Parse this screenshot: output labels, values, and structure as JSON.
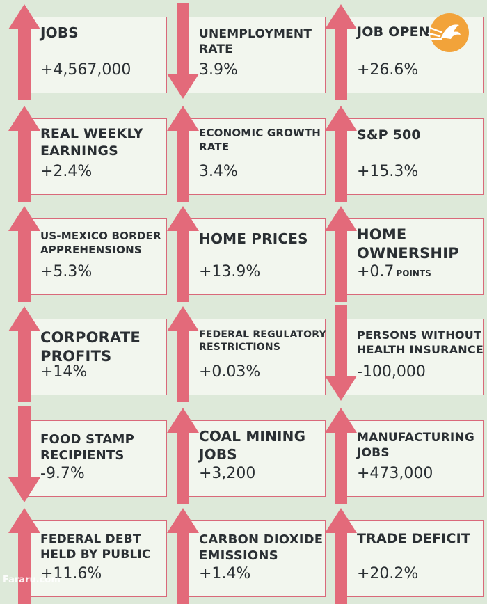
{
  "colors": {
    "background": "#dde9d9",
    "card": "#f2f6ee",
    "border": "#d9697a",
    "arrow": "#e36a7a",
    "text": "#2a2f33"
  },
  "watermark": "Fararu.com",
  "logo": {
    "icon": "fararu-logo-icon"
  },
  "indicators": [
    {
      "label": "JOBS",
      "value": "+4,567,000",
      "direction": "up"
    },
    {
      "label": "UNEMPLOYMENT\nRATE",
      "value": "3.9%",
      "direction": "down"
    },
    {
      "label": "JOB OPENINGS",
      "value": "+26.6%",
      "direction": "up"
    },
    {
      "label": "REAL WEEKLY\nEARNINGS",
      "value": "+2.4%",
      "direction": "up"
    },
    {
      "label": "ECONOMIC GROWTH\nRATE",
      "value": "3.4%",
      "direction": "up"
    },
    {
      "label": "S&P 500",
      "value": "+15.3%",
      "direction": "up"
    },
    {
      "label": "US-MEXICO BORDER\nAPPREHENSIONS",
      "value": "+5.3%",
      "direction": "up"
    },
    {
      "label": "HOME PRICES",
      "value": "+13.9%",
      "direction": "up"
    },
    {
      "label": "HOME\nOWNERSHIP",
      "value": "+0.7",
      "unit": "POINTS",
      "direction": "up"
    },
    {
      "label": "CORPORATE\nPROFITS",
      "value": "+14%",
      "direction": "up"
    },
    {
      "label": "FEDERAL REGULATORY\nRESTRICTIONS",
      "value": "+0.03%",
      "direction": "up"
    },
    {
      "label": "PERSONS WITHOUT\nHEALTH INSURANCE",
      "value": "-100,000",
      "direction": "down"
    },
    {
      "label": "FOOD STAMP\nRECIPIENTS",
      "value": "-9.7%",
      "direction": "down"
    },
    {
      "label": "COAL MINING\nJOBS",
      "value": "+3,200",
      "direction": "up"
    },
    {
      "label": "MANUFACTURING\nJOBS",
      "value": "+473,000",
      "direction": "up"
    },
    {
      "label": "FEDERAL DEBT\nHELD BY PUBLIC",
      "value": "+11.6%",
      "direction": "up"
    },
    {
      "label": "CARBON DIOXIDE\nEMISSIONS",
      "value": "+1.4%",
      "direction": "up"
    },
    {
      "label": "TRADE DEFICIT",
      "value": "+20.2%",
      "direction": "up"
    }
  ]
}
